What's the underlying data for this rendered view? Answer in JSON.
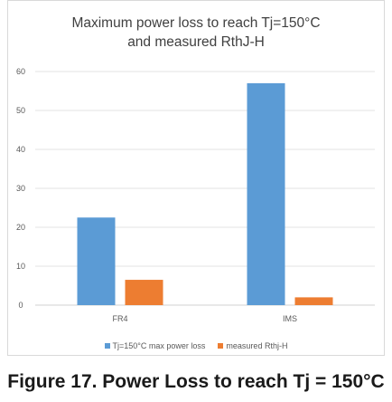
{
  "chart_data": {
    "type": "bar",
    "title_lines": [
      "Maximum power loss to reach Tj=150°C",
      "and measured RthJ-H"
    ],
    "categories": [
      "FR4",
      "IMS"
    ],
    "series": [
      {
        "name": "Tj=150°C max power loss",
        "values": [
          22.5,
          57
        ],
        "color": "#5b9bd5"
      },
      {
        "name": "measured Rthj-H",
        "values": [
          6.5,
          2
        ],
        "color": "#ed7d31"
      }
    ],
    "xlabel": "",
    "ylabel": "",
    "ylim": [
      0,
      60
    ],
    "yticks": [
      0,
      10,
      20,
      30,
      40,
      50,
      60
    ],
    "grid": true,
    "gridline_color": "#e3e3e3",
    "legend_position": "bottom"
  },
  "caption": "Figure 17. Power Loss to reach Tj = 150°C"
}
